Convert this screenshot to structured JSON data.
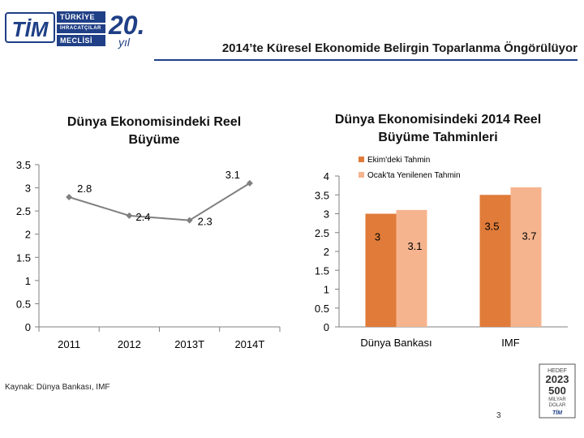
{
  "header": {
    "title": "2014’te Küresel Ekonomide Belirgin Toparlanma Öngörülüyor",
    "logo": {
      "acronym": "TİM",
      "line1": "TÜRKİYE",
      "line2": "İHRACATÇILAR",
      "line3": "MECLİSİ",
      "year_number": "20.",
      "year_suffix": "yıl"
    },
    "rule_color": "#1f3f86"
  },
  "chart_data": [
    {
      "type": "line",
      "title": "Dünya Ekonomisindeki Reel Büyüme",
      "categories": [
        "2011",
        "2012",
        "2013T",
        "2014T"
      ],
      "values": [
        2.8,
        2.4,
        2.3,
        3.1
      ],
      "data_labels": [
        "2.8",
        "2.4",
        "2.3",
        "3.1"
      ],
      "ylim": [
        0,
        3.5
      ],
      "yticks": [
        "0",
        "0.5",
        "1",
        "1.5",
        "2",
        "2.5",
        "3",
        "3.5"
      ],
      "grid": false,
      "color": "#808080"
    },
    {
      "type": "bar",
      "title": "Dünya Ekonomisindeki 2014 Reel Büyüme Tahminleri",
      "categories": [
        "Dünya Bankası",
        "IMF"
      ],
      "series": [
        {
          "name": "Ekim'deki Tahmin",
          "values": [
            3,
            3.5
          ],
          "data_labels": [
            "3",
            "3.5"
          ],
          "color": "#e07b39"
        },
        {
          "name": "Ocak'ta Yenilenen Tahmin",
          "values": [
            3.1,
            3.7
          ],
          "data_labels": [
            "3.1",
            "3.7"
          ],
          "color": "#f5b48e"
        }
      ],
      "ylim": [
        0,
        4
      ],
      "yticks": [
        "0",
        "0.5",
        "1",
        "1.5",
        "2",
        "2.5",
        "3",
        "3.5",
        "4"
      ],
      "legend": "top-right",
      "grid": false
    }
  ],
  "footer": {
    "source": "Kaynak: Dünya Bankası, IMF",
    "page_number": "3",
    "badge": {
      "line1": "HEDEF",
      "line2": "2023",
      "line3": "500",
      "line4": "MİLYAR",
      "line5": "DOLAR",
      "line6": "TİM"
    }
  }
}
